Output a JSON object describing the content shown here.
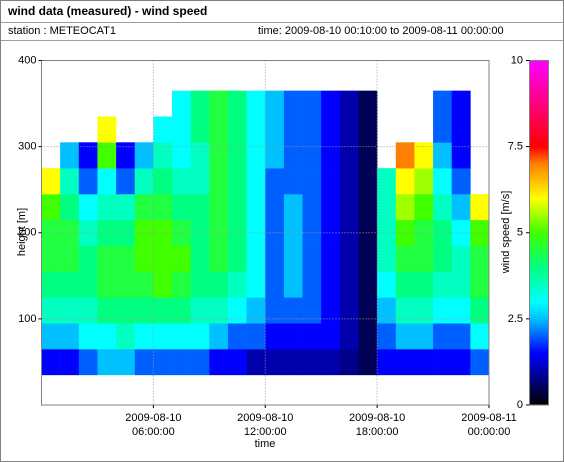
{
  "chart_data": {
    "type": "heatmap",
    "title": "wind data (measured) - wind speed",
    "station": "station : METEOCAT1",
    "period": "time: 2009-08-10 00:10:00 to 2009-08-11 00:00:00",
    "x_label": "time",
    "y_label": "height [m]",
    "colorbar_label": "wind speed [m/s]",
    "xlim": [
      0,
      24
    ],
    "ylim": [
      0,
      400
    ],
    "xticks": [
      {
        "value": 6,
        "label": [
          "2009-08-10",
          "06:00:00"
        ]
      },
      {
        "value": 12,
        "label": [
          "2009-08-10",
          "12:00:00"
        ]
      },
      {
        "value": 18,
        "label": [
          "2009-08-10",
          "18:00:00"
        ]
      },
      {
        "value": 24,
        "label": [
          "2009-08-11",
          "00:00:00"
        ]
      }
    ],
    "yticks": [
      100,
      200,
      300,
      400
    ],
    "grid": true,
    "x_bins": [
      0,
      1,
      2,
      3,
      4,
      5,
      6,
      7,
      8,
      9,
      10,
      11,
      12,
      13,
      14,
      15,
      16,
      17,
      18,
      19,
      20,
      21,
      22,
      23,
      24
    ],
    "y_bins": [
      35,
      65,
      95,
      125,
      155,
      185,
      215,
      245,
      275,
      305,
      335,
      365
    ],
    "values": [
      [
        1.5,
        2.5,
        3.5,
        4,
        4.5,
        4.5,
        5,
        6,
        null,
        null,
        null
      ],
      [
        1.5,
        2.5,
        3.5,
        4,
        4.5,
        4.5,
        4,
        3.5,
        2.5,
        null,
        null
      ],
      [
        2,
        3,
        3.5,
        4,
        4,
        3.5,
        3,
        2,
        1.5,
        null,
        null
      ],
      [
        2.5,
        3,
        4,
        4.5,
        4.5,
        4,
        3.5,
        3,
        5,
        6,
        null
      ],
      [
        2.5,
        3.5,
        4,
        4.5,
        4.5,
        4,
        3.5,
        2,
        1.5,
        null,
        null
      ],
      [
        2,
        3,
        4,
        4.5,
        5,
        5,
        4.5,
        3.5,
        2.5,
        null,
        null
      ],
      [
        2,
        3,
        4,
        5,
        5,
        5,
        4.5,
        4,
        3.5,
        3,
        null
      ],
      [
        2,
        3,
        4,
        4.5,
        5,
        4.5,
        4,
        3.5,
        3,
        3,
        3
      ],
      [
        2,
        3,
        3.5,
        4,
        4,
        4,
        4,
        3.5,
        3.5,
        4,
        4
      ],
      [
        1.5,
        2.5,
        3.5,
        4,
        4.5,
        4.5,
        4.5,
        4.5,
        4.5,
        4.5,
        4.5
      ],
      [
        1.5,
        2,
        3,
        3.5,
        4,
        4,
        4,
        4,
        4,
        4,
        4
      ],
      [
        1,
        2,
        2.5,
        3,
        3,
        3,
        3,
        3,
        3,
        3,
        3
      ],
      [
        1,
        1.5,
        2,
        2,
        2,
        2,
        2,
        2,
        2.5,
        2.5,
        2.5
      ],
      [
        1,
        1.5,
        2,
        2.5,
        2.5,
        2.5,
        2.5,
        2,
        2,
        2,
        2
      ],
      [
        1,
        1.5,
        2,
        2,
        2,
        2,
        2,
        2,
        2,
        2,
        2
      ],
      [
        1,
        1.5,
        1.5,
        1.5,
        1.5,
        1.5,
        1.5,
        1.5,
        1.5,
        1.5,
        1.5
      ],
      [
        0.8,
        1,
        1,
        1,
        1,
        1,
        1,
        1,
        1,
        1,
        1
      ],
      [
        0.5,
        0.5,
        0.5,
        0.5,
        0.5,
        0.5,
        0.5,
        0.5,
        0.5,
        0.5,
        0.5
      ],
      [
        1.5,
        2,
        2.5,
        3,
        3.5,
        3.5,
        3.5,
        3.5,
        null,
        null,
        null
      ],
      [
        1.5,
        2.5,
        3.5,
        4,
        4.5,
        5,
        5.5,
        6,
        7,
        null,
        null
      ],
      [
        1.5,
        2.5,
        3.5,
        4,
        4.5,
        4.5,
        5,
        5.5,
        6,
        null,
        null
      ],
      [
        1.5,
        2,
        3,
        3.5,
        4,
        4,
        3.5,
        3,
        2.5,
        2,
        2
      ],
      [
        1.5,
        2,
        3,
        3.5,
        3.5,
        3,
        2.5,
        2,
        1.5,
        1.5,
        1.5
      ],
      [
        2,
        3,
        4,
        4.5,
        4.5,
        5,
        6,
        null,
        null,
        null,
        null
      ]
    ],
    "clim": [
      0,
      10
    ],
    "cticks": [
      0,
      2.5,
      5,
      7.5,
      10
    ],
    "colormap": [
      {
        "value": 0,
        "color": "#000000"
      },
      {
        "value": 0.8,
        "color": "#00008b"
      },
      {
        "value": 1.5,
        "color": "#0000ff"
      },
      {
        "value": 2.5,
        "color": "#00c0ff"
      },
      {
        "value": 3,
        "color": "#00ffff"
      },
      {
        "value": 4,
        "color": "#00ff80"
      },
      {
        "value": 5,
        "color": "#40ff00"
      },
      {
        "value": 6,
        "color": "#ffff00"
      },
      {
        "value": 7,
        "color": "#ff8000"
      },
      {
        "value": 7.5,
        "color": "#ff0000"
      },
      {
        "value": 10,
        "color": "#ff00ff"
      }
    ]
  }
}
